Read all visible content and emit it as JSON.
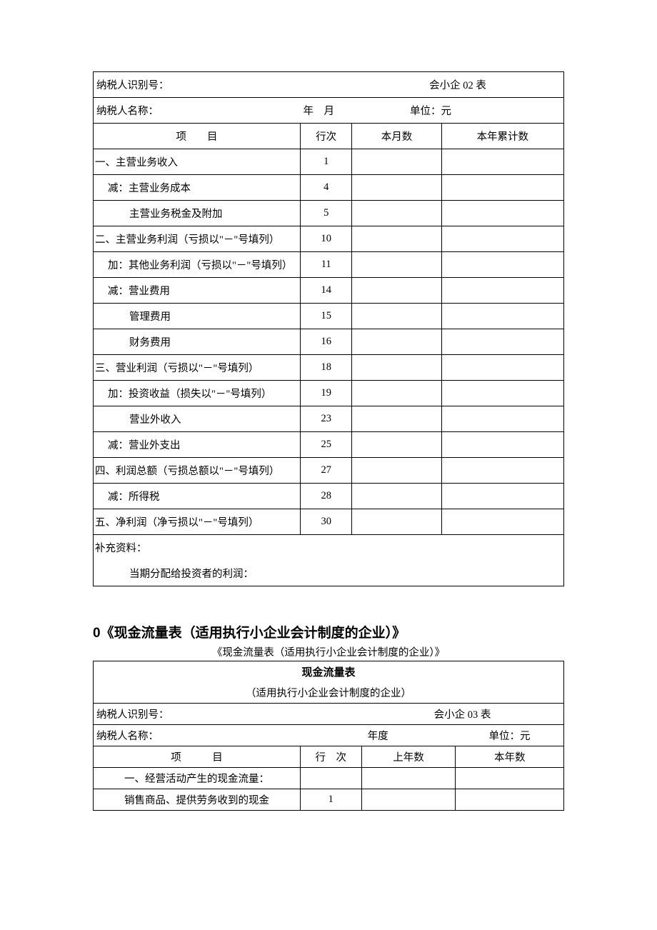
{
  "table1": {
    "taxpayer_id_label": "纳税人识别号：",
    "form_code": "会小企 02 表",
    "taxpayer_name_label": "纳税人名称：",
    "year_month": "年　月",
    "unit_label": "单位：元",
    "col_item": "项　　目",
    "col_rownum": "行次",
    "col_month": "本月数",
    "col_yearacc": "本年累计数",
    "rows": [
      {
        "name": "一、主营业务收入",
        "num": "1",
        "indent": 0
      },
      {
        "name": "减：主营业务成本",
        "num": "4",
        "indent": 1
      },
      {
        "name": "主营业务税金及附加",
        "num": "5",
        "indent": 2
      },
      {
        "name": "二、主营业务利润（亏损以\"－\"号填列）",
        "num": "10",
        "indent": 0
      },
      {
        "name": "加：其他业务利润（亏损以\"－\"号填列）",
        "num": "11",
        "indent": 1
      },
      {
        "name": "减：营业费用",
        "num": "14",
        "indent": 1
      },
      {
        "name": "管理费用",
        "num": "15",
        "indent": 2
      },
      {
        "name": "财务费用",
        "num": "16",
        "indent": 2
      },
      {
        "name": "三、营业利润（亏损以\"－\"号填列）",
        "num": "18",
        "indent": 0
      },
      {
        "name": "加：投资收益（损失以\"－\"号填列）",
        "num": "19",
        "indent": 1
      },
      {
        "name": "营业外收入",
        "num": "23",
        "indent": 2
      },
      {
        "name": "减：营业外支出",
        "num": "25",
        "indent": 1
      },
      {
        "name": "四、利润总额（亏损总额以\"－\"号填列）",
        "num": "27",
        "indent": 0
      },
      {
        "name": "减：所得税",
        "num": "28",
        "indent": 1
      },
      {
        "name": "五、净利润（净亏损以\"－\"号填列）",
        "num": "30",
        "indent": 0
      }
    ],
    "supplement_label": "补充资料：",
    "supplement_item": "当期分配给投资者的利润："
  },
  "section2": {
    "heading": "0《现金流量表（适用执行小企业会计制度的企业）》",
    "subtitle": "《现金流量表（适用执行小企业会计制度的企业）》"
  },
  "table2": {
    "title": "现金流量表",
    "subtitle": "（适用执行小企业会计制度的企业）",
    "taxpayer_id_label": "纳税人识别号：",
    "form_code": "会小企 03 表",
    "taxpayer_name_label": "纳税人名称：",
    "year_label": "年度",
    "unit_label": "单位：元",
    "col_item": "项　　　目",
    "col_rownum": "行　次",
    "col_lastyear": "上年数",
    "col_thisyear": "本年数",
    "rows": [
      {
        "name": "一、经营活动产生的现金流量：",
        "num": ""
      },
      {
        "name": "销售商品、提供劳务收到的现金",
        "num": "1"
      }
    ]
  },
  "columns_t1": {
    "c1": "44%",
    "c2": "11%",
    "c3": "19%",
    "c4": "26%"
  },
  "columns_t2": {
    "c1": "44%",
    "c2": "13%",
    "c3": "20%",
    "c4": "23%"
  }
}
